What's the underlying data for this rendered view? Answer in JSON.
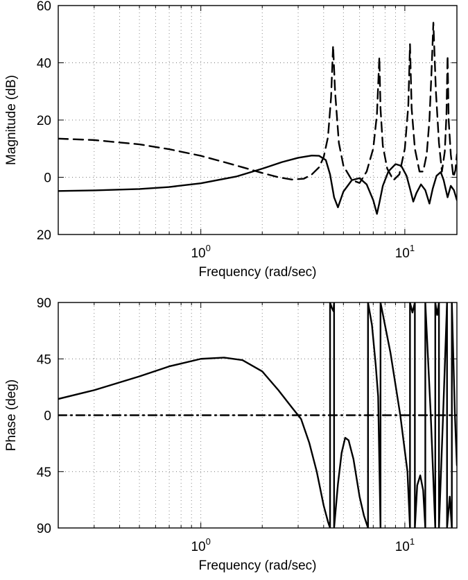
{
  "chart_data": [
    {
      "type": "line",
      "panel": "magnitude",
      "ylabel": "Magnitude (dB)",
      "xlabel": "Frequency (rad/sec)",
      "xscale": "log",
      "xlim": [
        0.2,
        18
      ],
      "ylim": [
        -20,
        60
      ],
      "yticks": [
        60,
        40,
        20,
        0,
        -20
      ],
      "ytick_labels": [
        "60",
        "40",
        "20",
        "0",
        "20"
      ],
      "xticks": [
        {
          "value": 1,
          "base": "10",
          "exp": "0"
        },
        {
          "value": 10,
          "base": "10",
          "exp": "1"
        }
      ],
      "grid": true,
      "series": [
        {
          "style": "solid",
          "x": [
            0.2,
            0.3,
            0.5,
            0.7,
            1.0,
            1.5,
            2.0,
            2.5,
            3.0,
            3.5,
            3.8,
            4.1,
            4.3,
            4.5,
            4.7,
            5.0,
            5.5,
            6.0,
            6.5,
            7.0,
            7.3,
            7.5,
            7.8,
            8.3,
            9.0,
            9.6,
            10.2,
            10.6,
            11.0,
            11.4,
            12.0,
            12.6,
            13.2,
            13.7,
            14.3,
            15.0,
            15.5,
            16.2,
            16.8,
            17.4,
            18.0
          ],
          "values": [
            -4.8,
            -4.6,
            -4.1,
            -3.4,
            -2.1,
            0.3,
            3.0,
            5.3,
            6.8,
            7.6,
            7.5,
            6.0,
            1.0,
            -7.0,
            -10.5,
            -5.0,
            -1.0,
            -0.3,
            -2.5,
            -8.0,
            -12.8,
            -9.0,
            -3.0,
            2.0,
            4.6,
            4.0,
            0.5,
            -4.0,
            -8.5,
            -5.5,
            -2.5,
            -4.5,
            -9.2,
            -4.0,
            0.5,
            1.8,
            -1.0,
            -7.0,
            -3.0,
            -4.5,
            -8.0
          ]
        },
        {
          "style": "dashed",
          "x": [
            0.2,
            0.3,
            0.5,
            0.7,
            1.0,
            1.3,
            1.6,
            2.0,
            2.4,
            2.8,
            3.2,
            3.5,
            3.8,
            4.0,
            4.2,
            4.35,
            4.45,
            4.55,
            4.75,
            5.0,
            5.5,
            6.0,
            6.5,
            7.0,
            7.3,
            7.5,
            7.6,
            7.8,
            8.2,
            8.8,
            9.4,
            10.0,
            10.4,
            10.6,
            10.8,
            11.2,
            11.8,
            12.3,
            12.8,
            13.2,
            13.5,
            13.8,
            14.2,
            14.7,
            15.2,
            15.7,
            16.0,
            16.2,
            16.4,
            16.8,
            17.3,
            17.7,
            18.0
          ],
          "values": [
            13.5,
            13.0,
            11.5,
            9.8,
            7.5,
            5.3,
            3.5,
            1.5,
            0.0,
            -0.8,
            -0.5,
            1.0,
            3.5,
            7.0,
            14.0,
            28.0,
            46.0,
            30.0,
            12.0,
            4.0,
            -1.0,
            -2.0,
            2.0,
            10.0,
            22.0,
            42.0,
            24.0,
            11.0,
            3.0,
            -1.0,
            1.0,
            10.0,
            25.0,
            46.5,
            24.0,
            10.0,
            2.0,
            2.0,
            8.0,
            20.0,
            36.0,
            54.0,
            30.0,
            12.0,
            2.0,
            9.0,
            22.0,
            42.5,
            20.0,
            8.0,
            0.0,
            2.5,
            8.0
          ]
        }
      ]
    },
    {
      "type": "line",
      "panel": "phase",
      "ylabel": "Phase (deg)",
      "xlabel": "Frequency (rad/sec)",
      "xscale": "log",
      "xlim": [
        0.2,
        18
      ],
      "ylim": [
        -90,
        90
      ],
      "yticks": [
        90,
        45,
        0,
        -45,
        -90
      ],
      "ytick_labels": [
        "90",
        "45",
        "0",
        "45",
        "90"
      ],
      "xticks": [
        {
          "value": 1,
          "base": "10",
          "exp": "0"
        },
        {
          "value": 10,
          "base": "10",
          "exp": "1"
        }
      ],
      "grid": true,
      "series": [
        {
          "style": "solid",
          "segments": [
            {
              "x": [
                0.2,
                0.3,
                0.5,
                0.7,
                1.0,
                1.3,
                1.6,
                2.0,
                2.4,
                2.8,
                3.1,
                3.4,
                3.7,
                4.0,
                4.2,
                4.3
              ],
              "values": [
                13,
                20,
                31,
                39,
                45,
                46,
                44,
                35,
                20,
                6,
                -3,
                -22,
                -45,
                -72,
                -85,
                -90
              ]
            },
            {
              "x": [
                4.3,
                4.3
              ],
              "values": [
                -90,
                90
              ]
            },
            {
              "x": [
                4.3,
                4.38,
                4.47,
                4.5
              ],
              "values": [
                90,
                86,
                83,
                90
              ]
            },
            {
              "x": [
                4.5,
                4.5
              ],
              "values": [
                90,
                -90
              ]
            },
            {
              "x": [
                4.5,
                4.7,
                4.9,
                5.1,
                5.3,
                5.6,
                6.0,
                6.3,
                6.6
              ],
              "values": [
                -90,
                -55,
                -30,
                -18,
                -20,
                -35,
                -65,
                -80,
                -90
              ]
            },
            {
              "x": [
                6.6,
                6.6
              ],
              "values": [
                -90,
                90
              ]
            },
            {
              "x": [
                6.6,
                6.9,
                7.2,
                7.4,
                7.6
              ],
              "values": [
                90,
                72,
                40,
                15,
                -90
              ]
            },
            {
              "x": [
                7.6,
                7.6
              ],
              "values": [
                -90,
                90
              ]
            },
            {
              "x": [
                7.6,
                8.5,
                9.5,
                10.3,
                10.6
              ],
              "values": [
                90,
                50,
                0,
                -45,
                -90
              ]
            },
            {
              "x": [
                10.6,
                10.6
              ],
              "values": [
                -90,
                90
              ]
            },
            {
              "x": [
                10.6,
                10.9,
                11.2
              ],
              "values": [
                90,
                82,
                90
              ]
            },
            {
              "x": [
                11.2,
                11.2
              ],
              "values": [
                90,
                -90
              ]
            },
            {
              "x": [
                11.2,
                11.5,
                11.9,
                12.3,
                12.6
              ],
              "values": [
                -90,
                -56,
                -48,
                -60,
                -90
              ]
            },
            {
              "x": [
                12.6,
                12.6
              ],
              "values": [
                -90,
                90
              ]
            },
            {
              "x": [
                12.6,
                13.4,
                14.1
              ],
              "values": [
                90,
                0,
                -90
              ]
            },
            {
              "x": [
                14.1,
                14.1
              ],
              "values": [
                -90,
                90
              ]
            },
            {
              "x": [
                14.1,
                14.4,
                14.7
              ],
              "values": [
                90,
                80,
                90
              ]
            },
            {
              "x": [
                14.7,
                14.7
              ],
              "values": [
                90,
                -90
              ]
            },
            {
              "x": [
                14.7,
                15.4,
                16.1
              ],
              "values": [
                -90,
                0,
                90
              ]
            },
            {
              "x": [
                16.1,
                16.1
              ],
              "values": [
                90,
                -90
              ]
            },
            {
              "x": [
                16.1,
                16.6,
                17.0
              ],
              "values": [
                -90,
                -65,
                -90
              ]
            },
            {
              "x": [
                17.0,
                17.0
              ],
              "values": [
                -90,
                90
              ]
            },
            {
              "x": [
                17.0,
                17.6,
                18.0
              ],
              "values": [
                90,
                0,
                -40
              ]
            }
          ]
        },
        {
          "style": "dashdot",
          "x": [
            0.2,
            18
          ],
          "values": [
            0,
            0
          ]
        }
      ]
    }
  ]
}
